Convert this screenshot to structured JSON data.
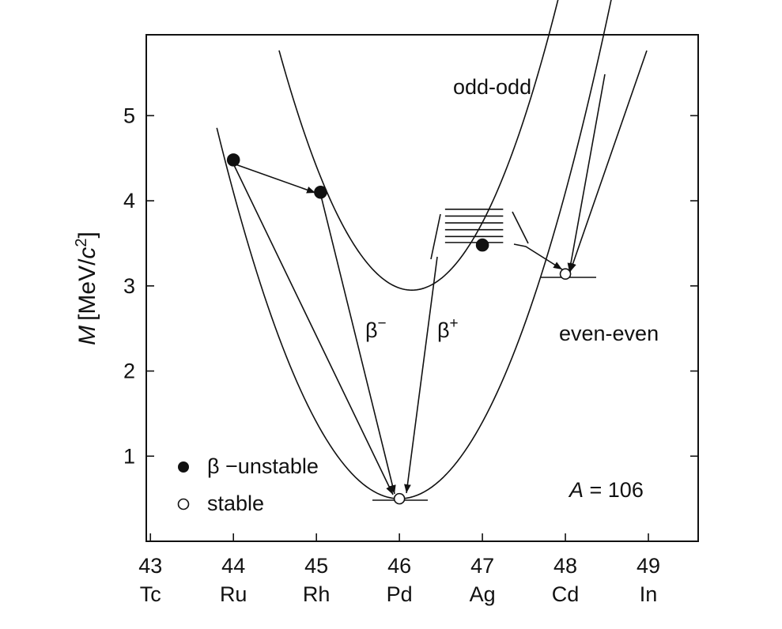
{
  "chart_data": {
    "type": "line",
    "ylabel_var": "M",
    "ylabel_unit_prefix": "[MeV/",
    "ylabel_unit_c": "c",
    "ylabel_unit_exp": "2",
    "ylabel_unit_suffix": "]",
    "xlim": [
      42.95,
      49.6
    ],
    "ylim": [
      0,
      5.95
    ],
    "x_ticks": [
      {
        "z": 43,
        "num": "43",
        "sym": "Tc"
      },
      {
        "z": 44,
        "num": "44",
        "sym": "Ru"
      },
      {
        "z": 45,
        "num": "45",
        "sym": "Rh"
      },
      {
        "z": 46,
        "num": "46",
        "sym": "Pd"
      },
      {
        "z": 47,
        "num": "47",
        "sym": "Ag"
      },
      {
        "z": 48,
        "num": "48",
        "sym": "Cd"
      },
      {
        "z": 49,
        "num": "49",
        "sym": "In"
      }
    ],
    "y_ticks": [
      {
        "v": 1,
        "label": "1"
      },
      {
        "v": 2,
        "label": "2"
      },
      {
        "v": 3,
        "label": "3"
      },
      {
        "v": 4,
        "label": "4"
      },
      {
        "v": 5,
        "label": "5"
      }
    ],
    "series": [
      {
        "name": "even-even",
        "kind": "parabola",
        "vertex_x": 46.0,
        "vertex_y": 0.5,
        "x_range": [
          43.8,
          49.07
        ],
        "k": 0.9
      },
      {
        "name": "odd-odd",
        "kind": "parabola",
        "vertex_x": 46.15,
        "vertex_y": 2.95,
        "x_range": [
          44.55,
          47.92
        ],
        "k": 1.1
      }
    ],
    "points": [
      {
        "x": 44.0,
        "y": 4.48,
        "stable": false
      },
      {
        "x": 45.05,
        "y": 4.1,
        "stable": false
      },
      {
        "x": 47.0,
        "y": 3.48,
        "stable": false
      },
      {
        "x": 46.0,
        "y": 0.5,
        "stable": true
      },
      {
        "x": 48.0,
        "y": 3.14,
        "stable": true
      }
    ],
    "level_lines": [
      {
        "x1": 47.0,
        "x2": 47.0,
        "y": 0
      },
      {
        "x1": 46.55,
        "x2": 47.25,
        "y": 3.9
      },
      {
        "x1": 46.55,
        "x2": 47.25,
        "y": 3.82
      },
      {
        "x1": 46.55,
        "x2": 47.25,
        "y": 3.74
      },
      {
        "x1": 46.55,
        "x2": 47.25,
        "y": 3.66
      },
      {
        "x1": 46.55,
        "x2": 47.25,
        "y": 3.58
      },
      {
        "x1": 46.55,
        "x2": 47.25,
        "y": 3.51
      }
    ],
    "annotations": {
      "odd_odd": "odd-odd",
      "even_even": "even-even",
      "beta_minus_sym": "β",
      "beta_minus_sup": "−",
      "beta_plus_sym": "β",
      "beta_plus_sup": "+",
      "mass_number_var": "A",
      "mass_number_rest": " = 106"
    },
    "legend": {
      "position": "bottom-left",
      "items": [
        {
          "label": "β −unstable",
          "marker": "filled-circle"
        },
        {
          "label": "stable",
          "marker": "open-circle"
        }
      ]
    }
  }
}
